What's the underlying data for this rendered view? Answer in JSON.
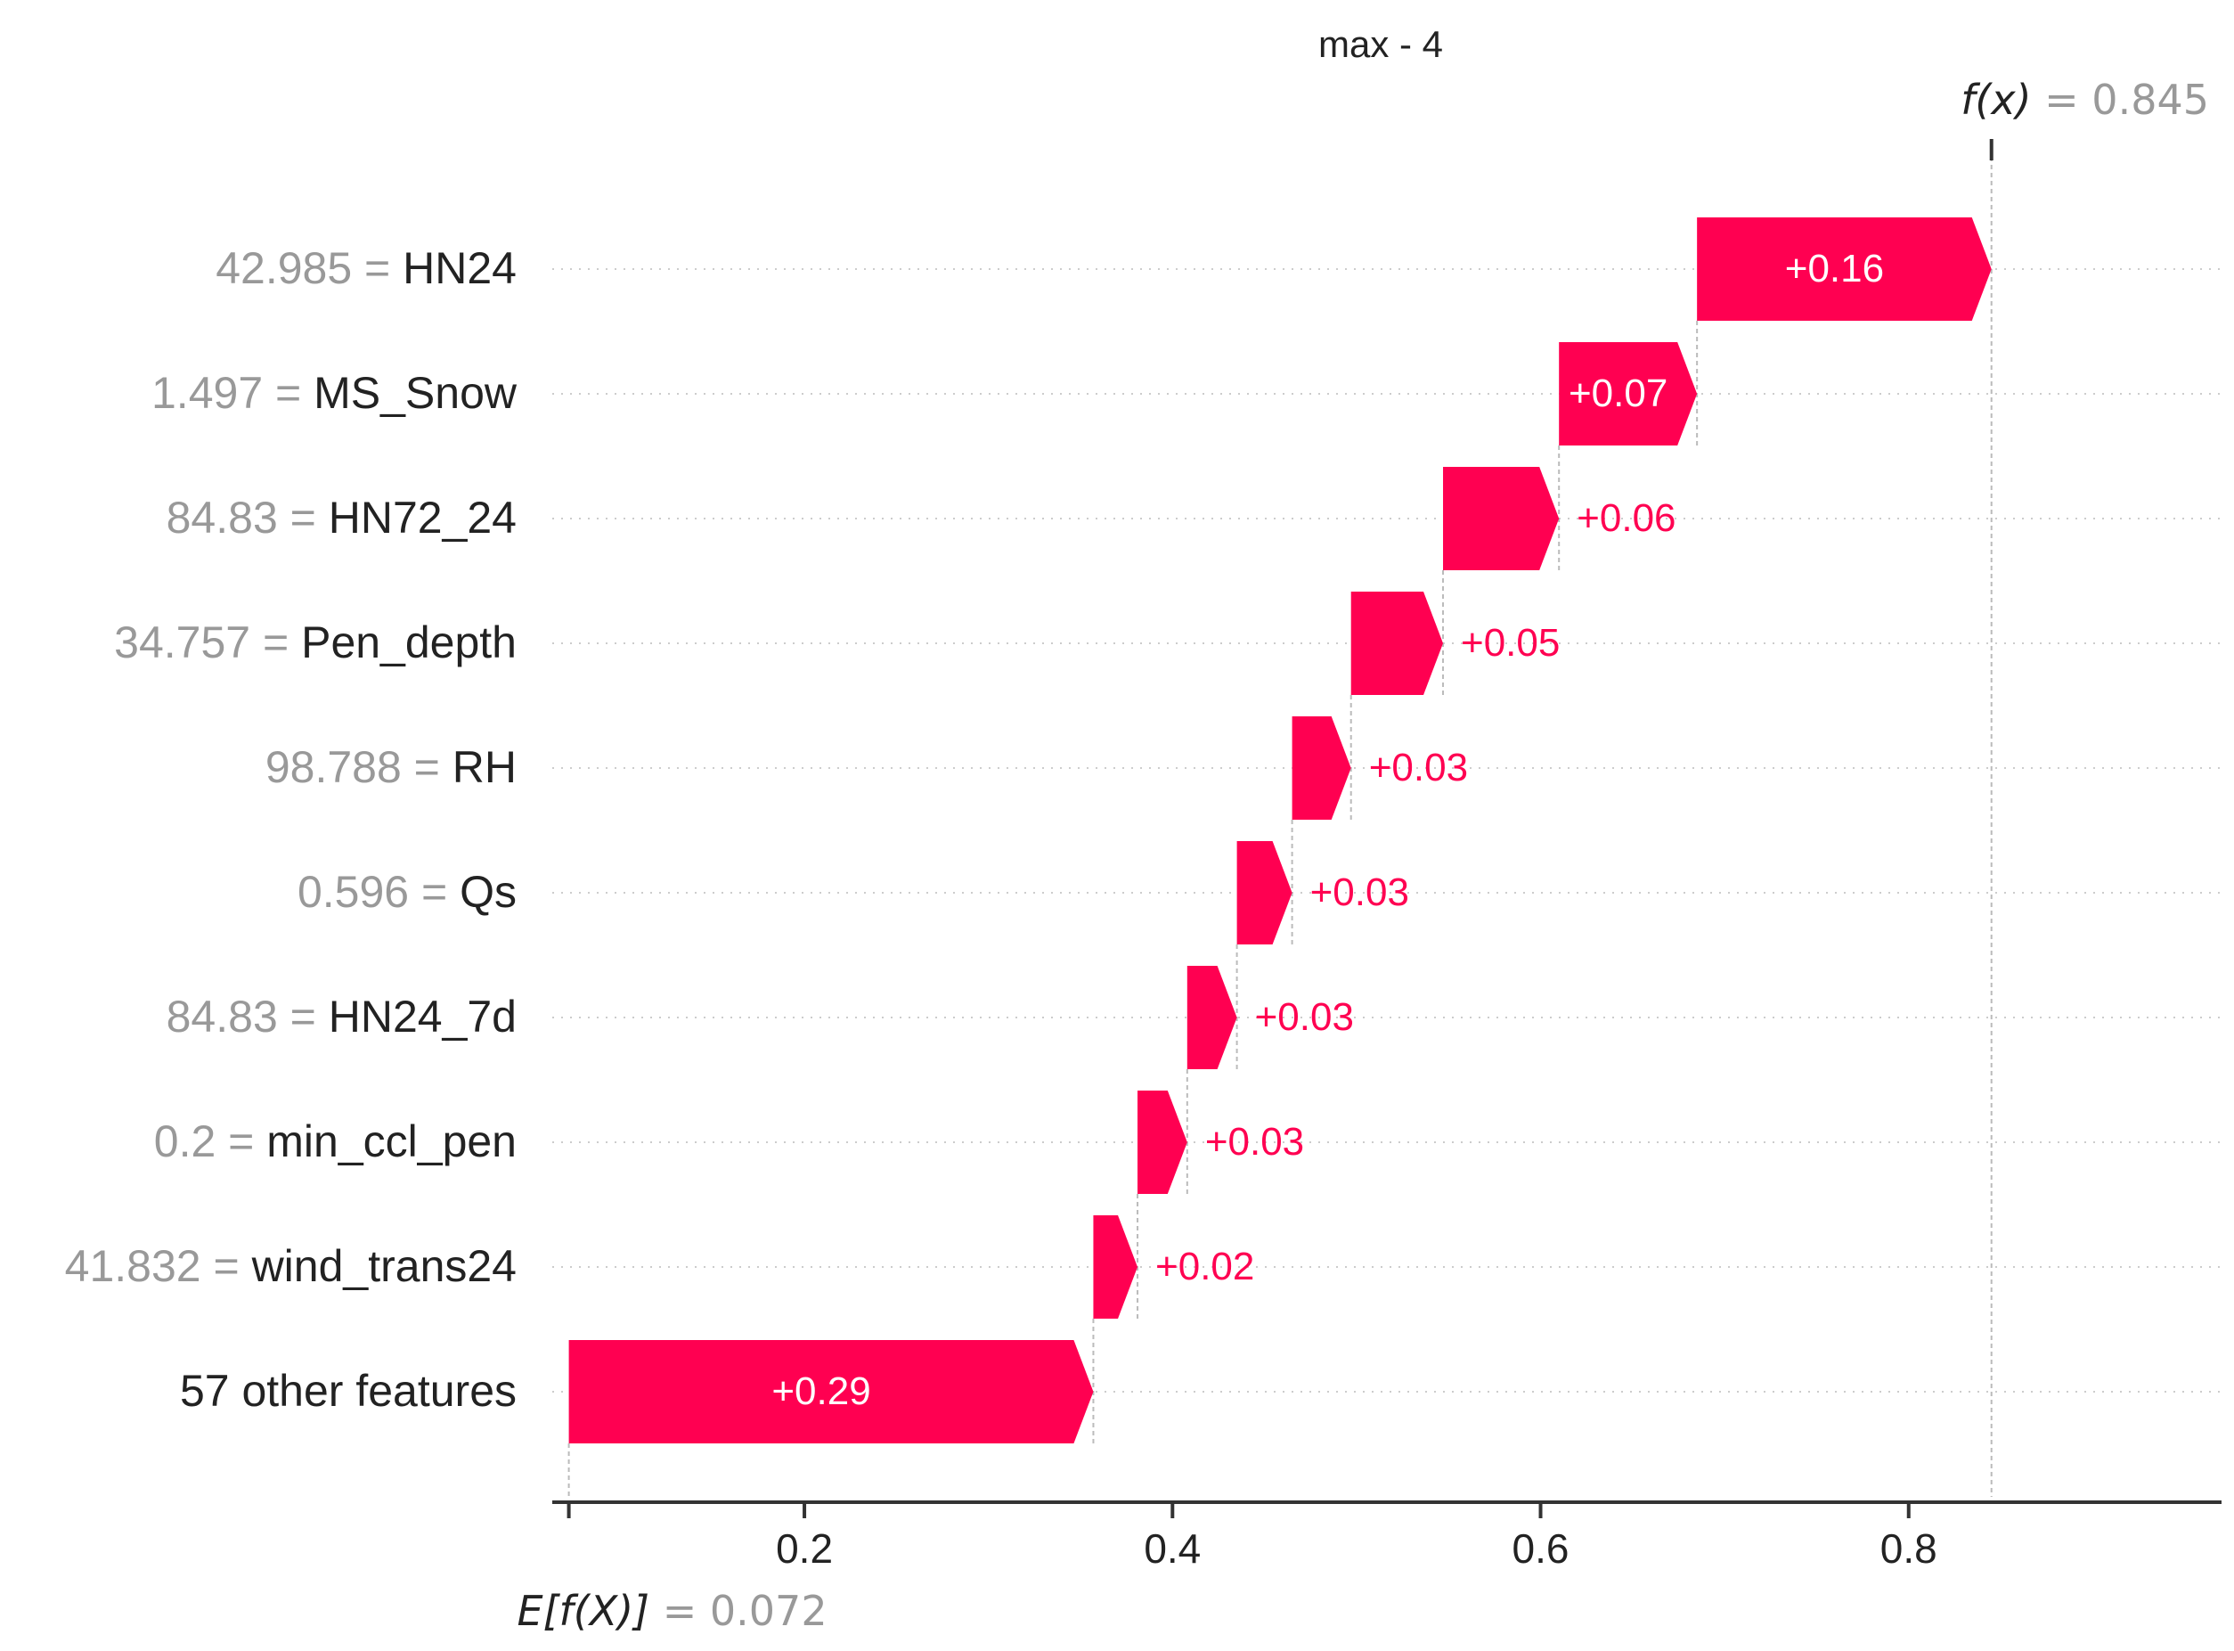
{
  "chart_data": {
    "type": "waterfall",
    "title": "max - 4",
    "base_value": {
      "label_prefix": "E[f(X)]",
      "value": 0.072,
      "value_text": "= 0.072"
    },
    "output_value": {
      "label_prefix": "f(x)",
      "value": 0.845,
      "value_text": "= 0.845"
    },
    "x_ticks": [
      0.2,
      0.4,
      0.6,
      0.8
    ],
    "x_tick_labels": [
      "0.2",
      "0.4",
      "0.6",
      "0.8"
    ],
    "xlim": [
      0.063,
      0.97
    ],
    "features": [
      {
        "value": "42.985",
        "name": "HN24",
        "contribution": 0.16,
        "start": 0.685,
        "end": 0.845,
        "label": "+0.16"
      },
      {
        "value": "1.497",
        "name": "MS_Snow",
        "contribution": 0.07,
        "start": 0.61,
        "end": 0.685,
        "label": "+0.07"
      },
      {
        "value": "84.83",
        "name": "HN72_24",
        "contribution": 0.06,
        "start": 0.547,
        "end": 0.61,
        "label": "+0.06"
      },
      {
        "value": "34.757",
        "name": "Pen_depth",
        "contribution": 0.05,
        "start": 0.497,
        "end": 0.547,
        "label": "+0.05"
      },
      {
        "value": "98.788",
        "name": "RH",
        "contribution": 0.03,
        "start": 0.465,
        "end": 0.497,
        "label": "+0.03"
      },
      {
        "value": "0.596",
        "name": "Qs",
        "contribution": 0.03,
        "start": 0.435,
        "end": 0.465,
        "label": "+0.03"
      },
      {
        "value": "84.83",
        "name": "HN24_7d",
        "contribution": 0.03,
        "start": 0.408,
        "end": 0.435,
        "label": "+0.03"
      },
      {
        "value": "0.2",
        "name": "min_ccl_pen",
        "contribution": 0.03,
        "start": 0.381,
        "end": 0.408,
        "label": "+0.03"
      },
      {
        "value": "41.832",
        "name": "wind_trans24",
        "contribution": 0.02,
        "start": 0.357,
        "end": 0.381,
        "label": "+0.02"
      },
      {
        "value": "",
        "name": "57 other features",
        "contribution": 0.29,
        "start": 0.072,
        "end": 0.357,
        "label": "+0.29"
      }
    ],
    "colors": {
      "positive": "#ff0051",
      "positive_text": "#ff0051",
      "bar_label_inside": "#ffffff",
      "feature_value_gray": "#999999",
      "feature_name": "#222222",
      "axis": "#333333",
      "gridline": "#cccccc",
      "connector": "#bbbbbb"
    },
    "legend": "none",
    "grid": "horizontal dotted per row"
  }
}
